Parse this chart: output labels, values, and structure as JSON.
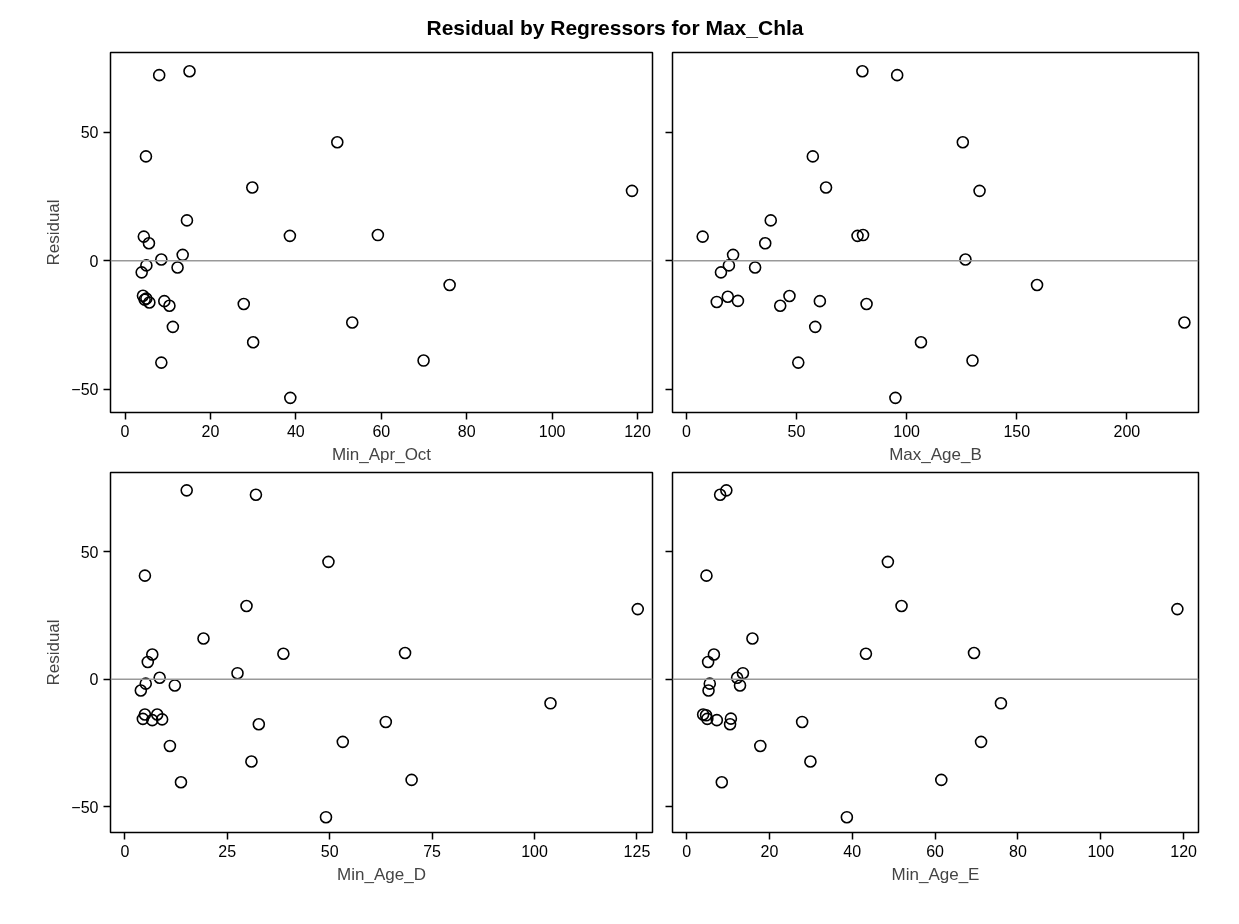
{
  "chart_data": [
    {
      "type": "scatter",
      "title": "Residual by Regressors for Max_Chla",
      "xlabel": "Min_Apr_Oct",
      "ylabel": "Residual",
      "color": "#000000",
      "marker": "circle",
      "grid": false,
      "xlim": [
        -3.4,
        123.5
      ],
      "xticks": [
        0,
        20,
        40,
        60,
        80,
        100,
        120
      ],
      "ylim": [
        -59,
        81
      ],
      "yticks": [
        -50,
        0,
        50
      ],
      "ref_lines": [
        {
          "axis": "y",
          "value": 0,
          "color": "#999999"
        }
      ],
      "x": [
        8.0,
        15.1,
        4.9,
        49.7,
        29.8,
        118.7,
        14.5,
        4.4,
        5.6,
        38.6,
        59.2,
        8.5,
        13.5,
        5.0,
        3.9,
        12.3,
        76.0,
        4.2,
        4.6,
        5.0,
        5.7,
        9.2,
        10.4,
        27.8,
        11.2,
        53.2,
        30.0,
        8.5,
        69.9,
        38.7
      ],
      "values": [
        72.2,
        73.7,
        40.6,
        46.1,
        28.5,
        27.2,
        15.7,
        9.4,
        6.8,
        9.7,
        10.0,
        0.5,
        2.3,
        -1.8,
        -4.5,
        -2.6,
        -9.4,
        -13.6,
        -15.1,
        -14.7,
        -16.2,
        -15.7,
        -17.5,
        -16.8,
        -25.7,
        -24.0,
        -31.7,
        -39.6,
        -38.8,
        -53.3
      ]
    },
    {
      "type": "scatter",
      "xlabel": "Max_Age_B",
      "color": "#000000",
      "marker": "circle",
      "grid": false,
      "tick_labels": "x",
      "xlim": [
        -6.3,
        232.5
      ],
      "xticks": [
        0,
        50,
        100,
        150,
        200
      ],
      "ylim": [
        -59,
        81
      ],
      "yticks": [
        -50,
        0,
        50
      ],
      "ref_lines": [
        {
          "axis": "y",
          "value": 0,
          "color": "#999999"
        }
      ],
      "x": [
        79.9,
        95.7,
        57.4,
        125.5,
        63.4,
        133.1,
        38.3,
        7.4,
        35.8,
        77.7,
        80.2,
        21.2,
        126.7,
        19.3,
        15.7,
        31.2,
        159.2,
        13.8,
        18.8,
        23.4,
        42.6,
        46.8,
        60.6,
        81.8,
        58.5,
        226.1,
        106.5,
        50.8,
        129.9,
        94.9
      ],
      "values": [
        73.7,
        72.2,
        40.6,
        46.1,
        28.5,
        27.2,
        15.7,
        9.4,
        6.8,
        9.7,
        10.0,
        2.3,
        0.5,
        -1.8,
        -4.5,
        -2.6,
        -9.4,
        -16.0,
        -14.0,
        -15.6,
        -17.5,
        -13.7,
        -15.7,
        -16.8,
        -25.7,
        -24.0,
        -31.7,
        -39.6,
        -38.8,
        -53.3
      ]
    },
    {
      "type": "scatter",
      "xlabel": "Min_Age_D",
      "ylabel": "Residual",
      "color": "#000000",
      "marker": "circle",
      "grid": false,
      "xlim": [
        -3.5,
        128.8
      ],
      "xticks": [
        0,
        25,
        50,
        75,
        100,
        125
      ],
      "ylim": [
        -60,
        81
      ],
      "yticks": [
        -50,
        0,
        50
      ],
      "ref_lines": [
        {
          "axis": "y",
          "value": 0,
          "color": "#999999"
        }
      ],
      "x": [
        15.1,
        32.0,
        4.9,
        49.7,
        29.7,
        125.2,
        19.2,
        6.7,
        5.6,
        38.7,
        68.4,
        8.5,
        27.5,
        5.1,
        3.9,
        12.2,
        103.9,
        4.9,
        4.4,
        7.9,
        6.7,
        9.1,
        32.7,
        63.7,
        11.0,
        53.2,
        30.9,
        13.7,
        70.0,
        49.1
      ],
      "values": [
        74.0,
        72.3,
        40.6,
        46.0,
        28.7,
        27.5,
        16.0,
        9.7,
        6.8,
        10.0,
        10.3,
        0.6,
        2.4,
        -1.7,
        -4.4,
        -2.4,
        -9.4,
        -13.8,
        -15.5,
        -13.8,
        -16.0,
        -15.7,
        -17.6,
        -16.7,
        -26.1,
        -24.5,
        -32.2,
        -40.3,
        -39.4,
        -54.0
      ]
    },
    {
      "type": "scatter",
      "xlabel": "Min_Age_E",
      "color": "#000000",
      "marker": "circle",
      "grid": false,
      "tick_labels": "x",
      "xlim": [
        -3.4,
        123.6
      ],
      "xticks": [
        0,
        20,
        40,
        60,
        80,
        100,
        120
      ],
      "ylim": [
        -60,
        81
      ],
      "yticks": [
        -50,
        0,
        50
      ],
      "ref_lines": [
        {
          "axis": "y",
          "value": 0,
          "color": "#999999"
        }
      ],
      "x": [
        8.1,
        9.6,
        4.8,
        48.6,
        51.9,
        118.5,
        15.9,
        6.6,
        5.2,
        43.3,
        69.4,
        12.2,
        13.6,
        5.6,
        5.3,
        12.9,
        75.9,
        4.0,
        4.7,
        5.0,
        7.3,
        10.7,
        10.5,
        27.9,
        17.8,
        71.1,
        29.9,
        8.5,
        61.5,
        38.7
      ],
      "values": [
        72.3,
        74.0,
        40.6,
        46.0,
        28.7,
        27.5,
        16.0,
        9.7,
        6.8,
        10.0,
        10.3,
        0.6,
        2.4,
        -1.7,
        -4.4,
        -2.4,
        -9.4,
        -13.8,
        -14.1,
        -15.5,
        -16.0,
        -15.4,
        -17.6,
        -16.7,
        -26.1,
        -24.5,
        -32.2,
        -40.3,
        -39.4,
        -54.0
      ]
    }
  ]
}
